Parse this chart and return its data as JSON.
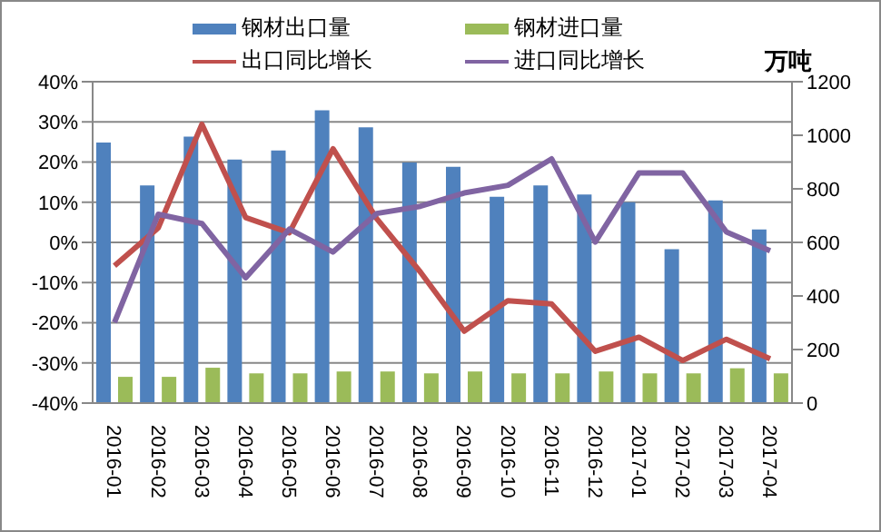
{
  "chart_data": {
    "type": "bar",
    "y2label": "万吨",
    "categories": [
      "2016-01",
      "2016-02",
      "2016-03",
      "2016-04",
      "2016-05",
      "2016-06",
      "2016-07",
      "2016-08",
      "2016-09",
      "2016-10",
      "2016-11",
      "2016-12",
      "2017-01",
      "2017-02",
      "2017-03",
      "2017-04"
    ],
    "series": [
      {
        "name": "钢材出口量",
        "axis": "y2",
        "color": "#4f81bd",
        "values": [
          973,
          813,
          995,
          909,
          943,
          1093,
          1030,
          898,
          882,
          770,
          813,
          779,
          750,
          575,
          757,
          648
        ]
      },
      {
        "name": "钢材进口量",
        "axis": "y2",
        "color": "#9bbb59",
        "values": [
          98,
          98,
          132,
          111,
          111,
          118,
          118,
          111,
          118,
          111,
          111,
          118,
          111,
          111,
          130,
          111
        ]
      },
      {
        "name": "出口同比增长",
        "type": "line",
        "color": "#c0504d",
        "values": [
          -5.8,
          3.6,
          29.4,
          6.2,
          2.4,
          23.3,
          5.9,
          -7.4,
          -22.1,
          -14.5,
          -15.3,
          -27.1,
          -23.6,
          -29.4,
          -24.1,
          -29.0
        ]
      },
      {
        "name": "进口同比增长",
        "type": "line",
        "color": "#8064a2",
        "values": [
          -19.9,
          7.0,
          4.7,
          -8.8,
          3.3,
          -2.4,
          7.2,
          9.0,
          12.3,
          14.2,
          20.8,
          0.1,
          17.3,
          17.3,
          2.6,
          -2.1
        ]
      }
    ],
    "ylim": [
      -40,
      40
    ],
    "yticks": [
      {
        "value": -40,
        "label": "-40%"
      },
      {
        "value": -30,
        "label": "-30%"
      },
      {
        "value": -20,
        "label": "-20%"
      },
      {
        "value": -10,
        "label": "-10%"
      },
      {
        "value": 0,
        "label": "0%"
      },
      {
        "value": 10,
        "label": "10%"
      },
      {
        "value": 20,
        "label": "20%"
      },
      {
        "value": 30,
        "label": "30%"
      },
      {
        "value": 40,
        "label": "40%"
      }
    ],
    "y2lim": [
      0,
      1200
    ],
    "y2ticks": [
      0,
      200,
      400,
      600,
      800,
      1000,
      1200
    ],
    "grid": "y",
    "legend": "top",
    "marker": "none",
    "line_style": "solid"
  }
}
